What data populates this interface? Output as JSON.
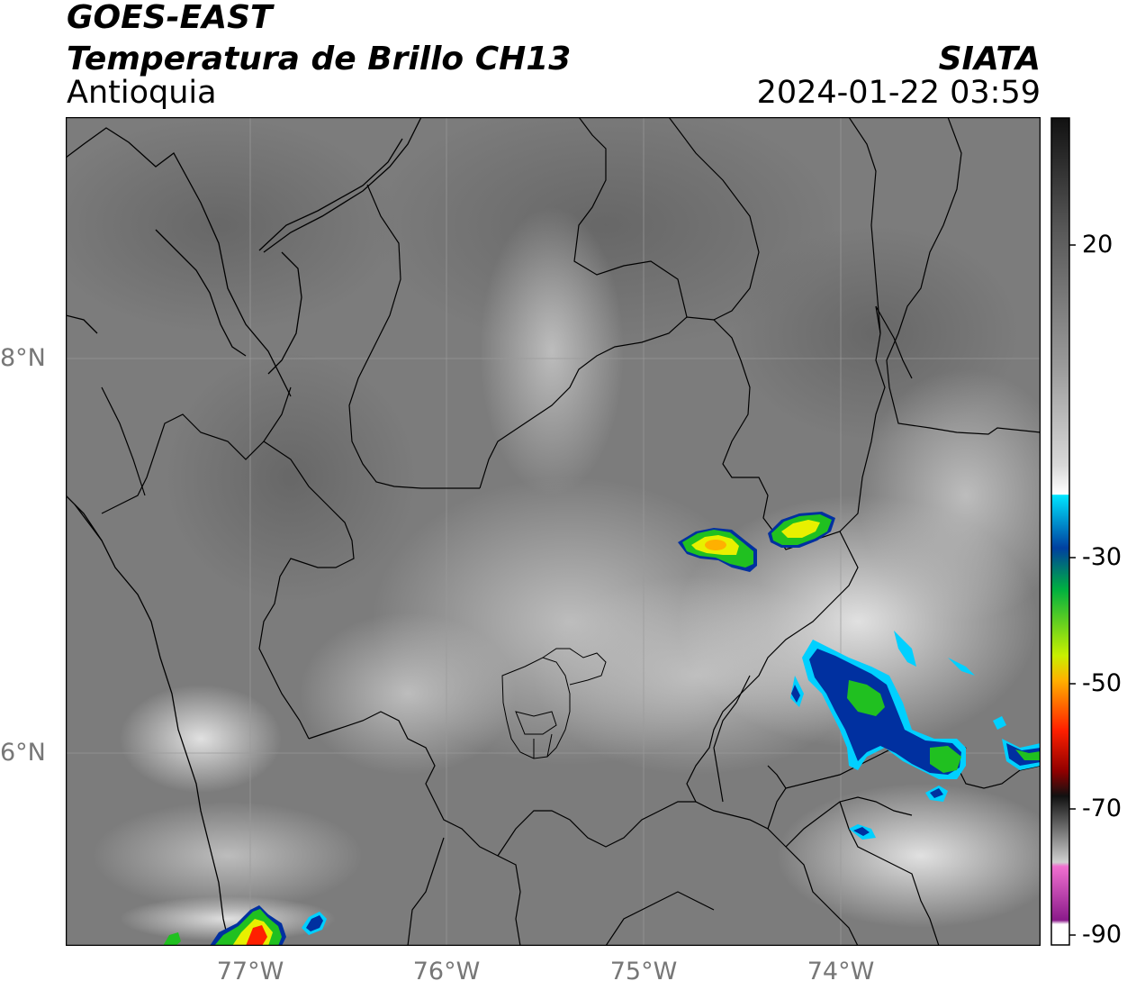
{
  "header": {
    "title_line1": "GOES-EAST",
    "title_line2": "Temperatura de Brillo CH13",
    "region": "Antioquia",
    "organization": "SIATA",
    "timestamp": "2024-01-22 03:59"
  },
  "map": {
    "latitude_labels": [
      "8°N",
      "6°N"
    ],
    "longitude_labels": [
      "77°W",
      "76°W",
      "75°W",
      "74°W"
    ],
    "background_gray": "#7c7c7c",
    "boundary_color": "#000000",
    "gridline_color": "#9a9a9a"
  },
  "colorbar": {
    "tick_labels": [
      "20",
      "-30",
      "-50",
      "-70",
      "-90"
    ],
    "palette": [
      "#111111",
      "#5a5a5a",
      "#9a9a9a",
      "#d8d8d8",
      "#ffffff",
      "#00e5ff",
      "#0040a0",
      "#00b040",
      "#c8f000",
      "#ffb000",
      "#ff2000",
      "#900000",
      "#111111",
      "#a8a8a8",
      "#f070d0",
      "#8a1a8a"
    ]
  },
  "storm_colors": {
    "core": "#ffb000",
    "yellow": "#e8f000",
    "green": "#20c020",
    "blue": "#0030a0",
    "cyan": "#00d0ff"
  }
}
